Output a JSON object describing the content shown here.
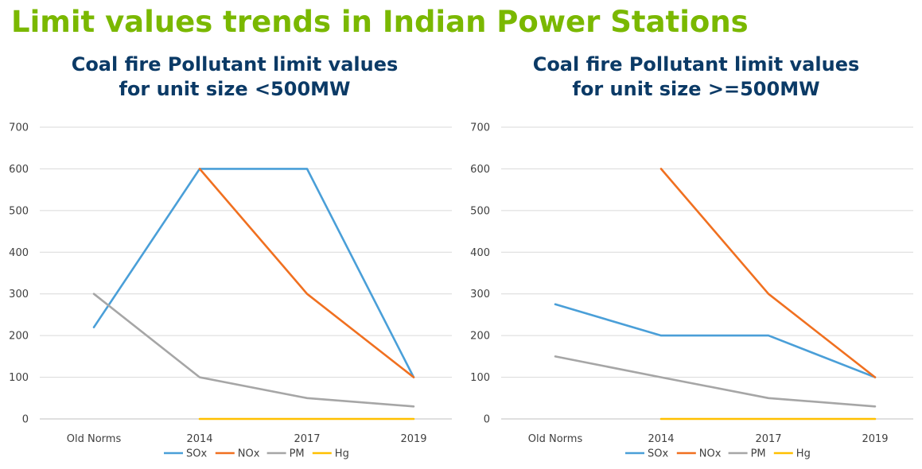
{
  "page": {
    "title": "Limit values trends in Indian Power Stations",
    "title_color": "#7ab800",
    "chart_title_color": "#0b3a66"
  },
  "chart_data": [
    {
      "type": "line",
      "title_line1": "Coal fire Pollutant limit values",
      "title_line2": "for unit size <500MW",
      "categories": [
        "Old Norms",
        "2014",
        "2017",
        "2019"
      ],
      "ylim": [
        0,
        700
      ],
      "yticks": [
        0,
        100,
        200,
        300,
        400,
        500,
        600,
        700
      ],
      "grid": true,
      "legend_position": "bottom",
      "series": [
        {
          "name": "SOx",
          "color": "#4a9fd8",
          "values": [
            220,
            600,
            600,
            100
          ]
        },
        {
          "name": "NOx",
          "color": "#f07020",
          "values": [
            null,
            600,
            300,
            100
          ]
        },
        {
          "name": "PM",
          "color": "#a6a6a6",
          "values": [
            300,
            100,
            50,
            30
          ]
        },
        {
          "name": "Hg",
          "color": "#ffc000",
          "values": [
            null,
            0.03,
            0.03,
            0.03
          ]
        }
      ]
    },
    {
      "type": "line",
      "title_line1": "Coal fire Pollutant limit values",
      "title_line2": "for unit size >=500MW",
      "categories": [
        "Old Norms",
        "2014",
        "2017",
        "2019"
      ],
      "ylim": [
        0,
        700
      ],
      "yticks": [
        0,
        100,
        200,
        300,
        400,
        500,
        600,
        700
      ],
      "grid": true,
      "legend_position": "bottom",
      "series": [
        {
          "name": "SOx",
          "color": "#4a9fd8",
          "values": [
            275,
            200,
            200,
            100
          ]
        },
        {
          "name": "NOx",
          "color": "#f07020",
          "values": [
            null,
            600,
            300,
            100
          ]
        },
        {
          "name": "PM",
          "color": "#a6a6a6",
          "values": [
            150,
            100,
            50,
            30
          ]
        },
        {
          "name": "Hg",
          "color": "#ffc000",
          "values": [
            null,
            0.03,
            0.03,
            0.03
          ]
        }
      ]
    }
  ]
}
